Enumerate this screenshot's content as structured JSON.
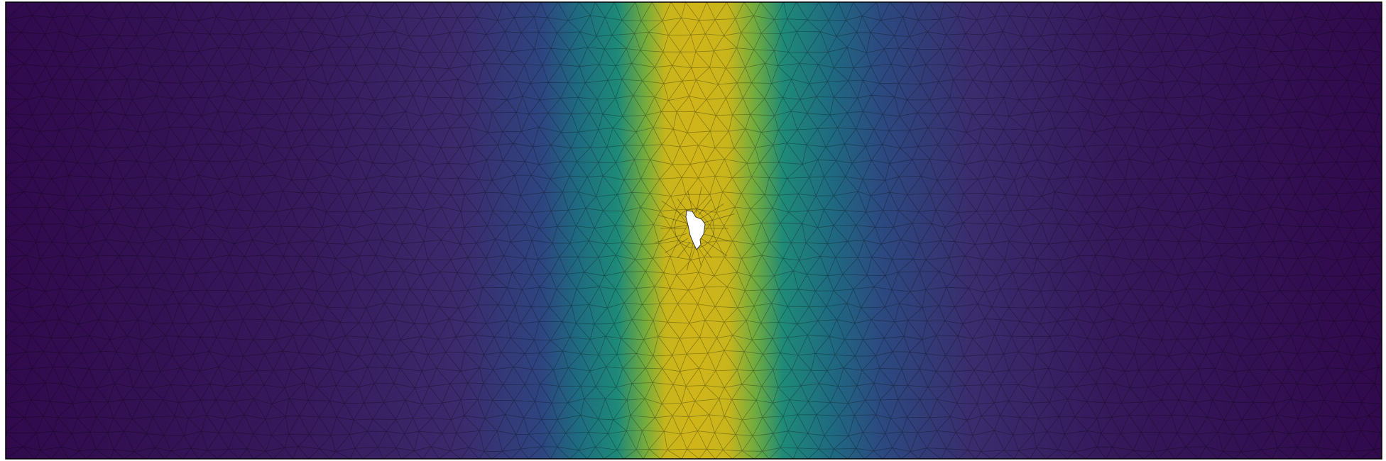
{
  "figure": {
    "type": "fem-mesh-field-plot",
    "description_free": true,
    "colormap": [
      "#300a4c",
      "#3c2d70",
      "#27497d",
      "#1c6b7e",
      "#21877a",
      "#52a35c",
      "#a3b22a",
      "#c8b51c",
      "#d0b51a"
    ],
    "mesh_line_color": "#000000",
    "frame_color": "#000000",
    "hole_color": "#ffffff",
    "field_profile": {
      "peak_x_fraction": 0.5,
      "note_values": [
        0.0,
        0.25,
        0.5,
        0.75,
        1.0
      ]
    }
  }
}
